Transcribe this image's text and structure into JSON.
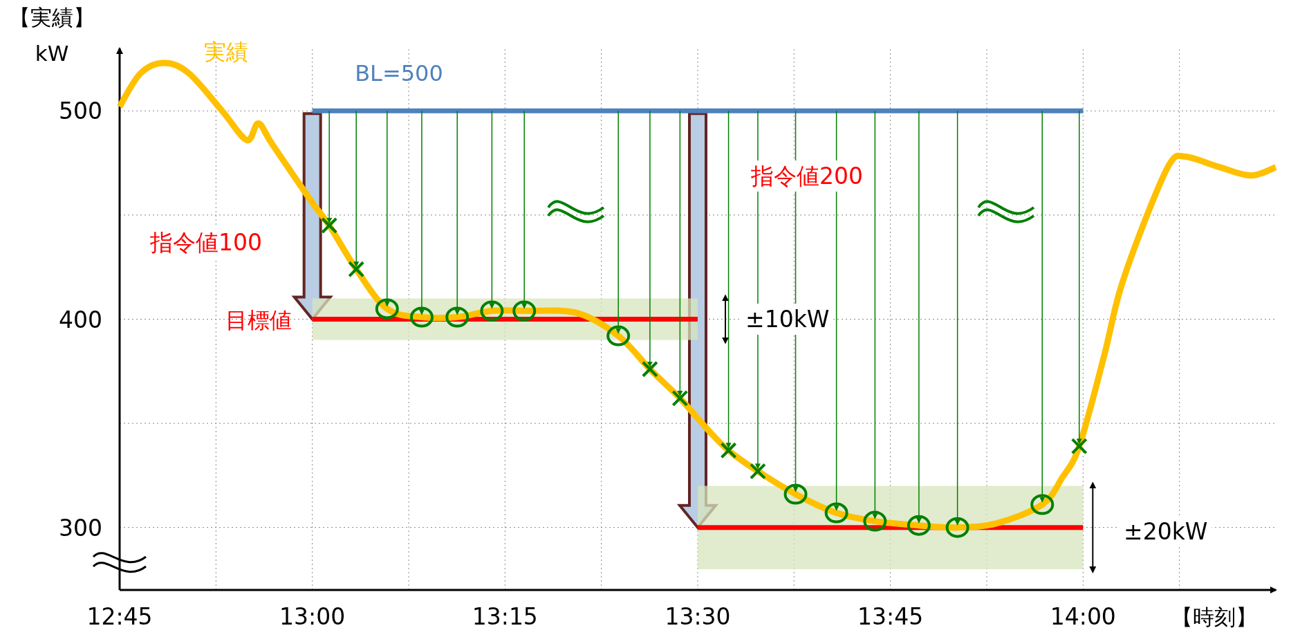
{
  "chart_data": {
    "type": "line",
    "xlabel": "【時刻】",
    "ylabel": "【実績】 kW",
    "xlim": [
      12.75,
      14.25
    ],
    "ylim": [
      270,
      530
    ],
    "xticks": [
      {
        "value": 12.75,
        "label": "12:45"
      },
      {
        "value": 12.875,
        "label": null
      },
      {
        "value": 13,
        "label": "13:00"
      },
      {
        "value": 13.125,
        "label": null
      },
      {
        "value": 13.25,
        "label": "13:15"
      },
      {
        "value": 13.375,
        "label": null
      },
      {
        "value": 13.5,
        "label": "13:30"
      },
      {
        "value": 13.625,
        "label": null
      },
      {
        "value": 13.75,
        "label": "13:45"
      },
      {
        "value": 13.875,
        "label": null
      },
      {
        "value": 14,
        "label": "14:00"
      },
      {
        "value": 14.125,
        "label": null
      }
    ],
    "yticks": [
      300,
      {
        "value": 350,
        "label": null
      },
      400,
      {
        "value": 450,
        "label": null
      },
      500
    ],
    "grid": true,
    "series": [
      {
        "name": "実績",
        "color": "#ffc000",
        "x": [
          12.75,
          12.777,
          12.808,
          12.84,
          12.883,
          12.915,
          12.93,
          12.948,
          12.998,
          13.022,
          13.057,
          13.097,
          13.142,
          13.188,
          13.233,
          13.275,
          13.343,
          13.397,
          13.438,
          13.477,
          13.513,
          13.54,
          13.578,
          13.627,
          13.68,
          13.73,
          13.787,
          13.837,
          13.888,
          13.947,
          13.973,
          13.995,
          14.027,
          14.048,
          14.082,
          14.113,
          14.133,
          14.177,
          14.218,
          14.25
        ],
        "values": [
          502,
          518,
          523,
          518,
          500,
          486,
          494,
          484,
          457,
          445,
          424,
          405,
          401,
          401,
          404,
          404,
          403,
          392,
          376,
          362,
          347,
          337,
          327,
          316,
          307,
          303,
          301,
          300,
          302,
          311,
          324,
          339,
          382,
          414,
          449,
          475,
          478,
          473,
          469,
          473
        ]
      },
      {
        "name": "BL=500",
        "color": "#4f81bd",
        "x": [
          13,
          14
        ],
        "values": [
          500,
          500
        ]
      },
      {
        "name": "目標値",
        "color": "#ff0000",
        "x": [
          13,
          13.5
        ],
        "values": [
          400,
          400
        ],
        "lower": [
          390,
          390
        ],
        "upper": [
          410,
          410
        ]
      },
      {
        "color": "#ff0000",
        "x": [
          13.5,
          14
        ],
        "values": [
          300,
          300
        ],
        "lower": [
          280,
          280
        ],
        "upper": [
          320,
          320
        ]
      },
      {
        "type": "scatter",
        "marker": "cross",
        "color": "#008000",
        "x": [
          13.022,
          13.057,
          13.438,
          13.477,
          13.54,
          13.578,
          13.995
        ],
        "values": [
          445,
          424,
          376,
          362,
          337,
          327,
          339
        ]
      },
      {
        "type": "scatter",
        "marker": "circle",
        "color": "#008000",
        "x": [
          13.097,
          13.142,
          13.188,
          13.233,
          13.275,
          13.397,
          13.627,
          13.68,
          13.73,
          13.787,
          13.837,
          13.947
        ],
        "values": [
          405,
          401,
          401,
          404,
          404,
          392,
          316,
          307,
          303,
          301,
          300,
          311
        ]
      }
    ],
    "annotations": [
      "指令値100",
      "指令値200",
      "±10kW",
      "±20kW"
    ]
  }
}
